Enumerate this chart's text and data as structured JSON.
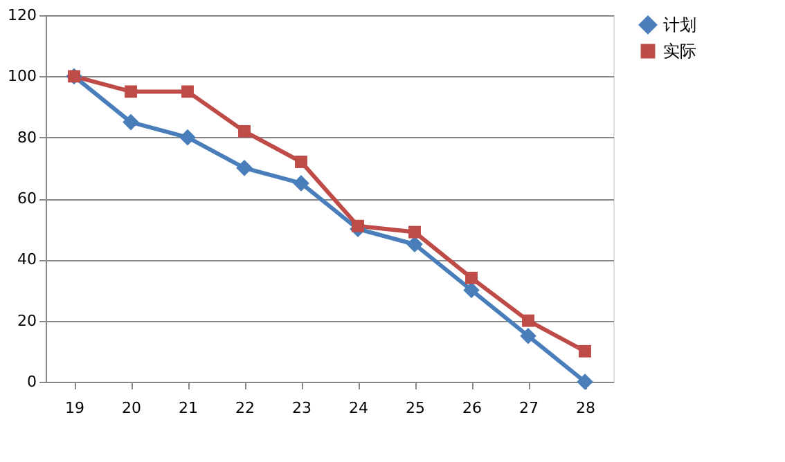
{
  "chart_data": {
    "type": "line",
    "categories": [
      "19",
      "20",
      "21",
      "22",
      "23",
      "24",
      "25",
      "26",
      "27",
      "28"
    ],
    "series": [
      {
        "name": "计划",
        "color": "#4a7ebb",
        "marker": "diamond",
        "values": [
          100,
          85,
          80,
          70,
          65,
          50,
          45,
          30,
          15,
          0
        ]
      },
      {
        "name": "实际",
        "color": "#be4b48",
        "marker": "square",
        "values": [
          100,
          95,
          95,
          82,
          72,
          51,
          49,
          34,
          20,
          10
        ]
      }
    ],
    "ylim": [
      0,
      120
    ],
    "yticks": [
      0,
      20,
      40,
      60,
      80,
      100,
      120
    ],
    "grid": "y",
    "legend": "right",
    "line_style": "solid"
  }
}
